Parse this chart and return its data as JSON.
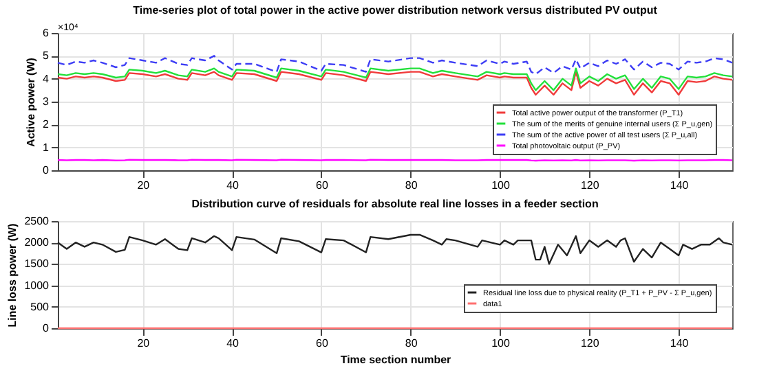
{
  "chart_data": [
    {
      "type": "line",
      "title": "Time-series plot of total power in the active power distribution network versus distributed PV output",
      "ylabel": "Active power (W)",
      "annotations": [
        "×10⁴"
      ],
      "xlim": [
        1,
        152
      ],
      "xticks": [
        20,
        40,
        60,
        80,
        100,
        120,
        140
      ],
      "ylim": [
        0,
        6
      ],
      "yticks": [
        0,
        1,
        2,
        3,
        4,
        5,
        6
      ],
      "grid": true,
      "legend": "bottom right",
      "marker": "none",
      "x": [
        1,
        3,
        5,
        7,
        9,
        11,
        14,
        16,
        17,
        20,
        23,
        25,
        28,
        30,
        31,
        34,
        36,
        37,
        40,
        41,
        45,
        50,
        51,
        55,
        60,
        61,
        65,
        70,
        71,
        75,
        80,
        82,
        85,
        87,
        90,
        95,
        97,
        100,
        101,
        103,
        106,
        107,
        108,
        110,
        112,
        114,
        116,
        117,
        118,
        120,
        122,
        124,
        126,
        128,
        130,
        132,
        134,
        136,
        138,
        140,
        142,
        144,
        146,
        148,
        150,
        152
      ],
      "series": [
        {
          "name": "Total active power output of the transformer (P_T1)",
          "color": "#f03a3a",
          "line_style": "solid",
          "values": [
            4.05,
            4.0,
            4.1,
            4.05,
            4.1,
            4.05,
            3.9,
            3.95,
            4.25,
            4.2,
            4.1,
            4.2,
            4.0,
            3.95,
            4.25,
            4.15,
            4.3,
            4.15,
            3.95,
            4.25,
            4.2,
            3.9,
            4.3,
            4.2,
            3.95,
            4.25,
            4.15,
            3.9,
            4.3,
            4.2,
            4.3,
            4.3,
            4.1,
            4.2,
            4.1,
            3.95,
            4.15,
            4.05,
            4.1,
            4.05,
            4.05,
            3.6,
            3.3,
            3.7,
            3.3,
            3.8,
            3.5,
            4.3,
            3.6,
            3.9,
            3.7,
            4.0,
            3.8,
            3.95,
            3.3,
            3.8,
            3.4,
            3.9,
            3.8,
            3.3,
            3.9,
            3.85,
            3.9,
            4.1,
            4.0,
            3.95
          ]
        },
        {
          "name": "The sum of the merits of genuine internal users (Σ P_u,gen)",
          "color": "#22e03a",
          "line_style": "solid",
          "values": [
            4.2,
            4.15,
            4.25,
            4.2,
            4.25,
            4.2,
            4.05,
            4.1,
            4.4,
            4.35,
            4.25,
            4.35,
            4.15,
            4.1,
            4.4,
            4.3,
            4.45,
            4.3,
            4.1,
            4.4,
            4.35,
            4.05,
            4.45,
            4.35,
            4.1,
            4.4,
            4.3,
            4.05,
            4.45,
            4.35,
            4.45,
            4.45,
            4.25,
            4.35,
            4.25,
            4.1,
            4.3,
            4.2,
            4.25,
            4.2,
            4.2,
            3.8,
            3.5,
            3.9,
            3.5,
            4.0,
            3.7,
            4.45,
            3.8,
            4.1,
            3.9,
            4.2,
            4.0,
            4.15,
            3.55,
            4.0,
            3.6,
            4.1,
            4.0,
            3.55,
            4.1,
            4.05,
            4.1,
            4.25,
            4.15,
            4.1
          ]
        },
        {
          "name": "The sum of the active power of all test users (Σ P_u,all)",
          "color": "#3d3df5",
          "line_style": "dashed",
          "values": [
            4.7,
            4.6,
            4.75,
            4.7,
            4.8,
            4.7,
            4.5,
            4.6,
            4.9,
            4.8,
            4.7,
            4.9,
            4.65,
            4.6,
            4.9,
            4.8,
            5.0,
            4.8,
            4.4,
            4.65,
            4.65,
            4.3,
            4.85,
            4.75,
            4.35,
            4.65,
            4.6,
            4.3,
            4.85,
            4.75,
            4.9,
            4.9,
            4.7,
            4.8,
            4.7,
            4.55,
            4.8,
            4.65,
            4.75,
            4.65,
            4.75,
            4.3,
            4.2,
            4.5,
            4.25,
            4.55,
            4.4,
            4.85,
            4.45,
            4.7,
            4.55,
            4.8,
            4.65,
            4.85,
            4.4,
            4.75,
            4.5,
            4.7,
            4.65,
            4.4,
            4.75,
            4.7,
            4.75,
            4.9,
            4.85,
            4.7
          ]
        },
        {
          "name": "Total photovoltaic output (P_PV)",
          "color": "#ff00ff",
          "line_style": "solid",
          "values": [
            0.45,
            0.44,
            0.45,
            0.45,
            0.44,
            0.45,
            0.43,
            0.44,
            0.46,
            0.45,
            0.45,
            0.45,
            0.44,
            0.44,
            0.46,
            0.45,
            0.45,
            0.45,
            0.44,
            0.46,
            0.45,
            0.44,
            0.46,
            0.45,
            0.44,
            0.45,
            0.45,
            0.44,
            0.46,
            0.45,
            0.45,
            0.45,
            0.45,
            0.45,
            0.44,
            0.44,
            0.45,
            0.45,
            0.45,
            0.45,
            0.45,
            0.43,
            0.42,
            0.44,
            0.43,
            0.44,
            0.43,
            0.45,
            0.43,
            0.44,
            0.43,
            0.44,
            0.44,
            0.44,
            0.42,
            0.44,
            0.43,
            0.44,
            0.44,
            0.43,
            0.44,
            0.44,
            0.44,
            0.45,
            0.45,
            0.44
          ]
        }
      ]
    },
    {
      "type": "line",
      "title": "Distribution curve of residuals for absolute real line losses in a feeder section",
      "xlabel": "Time section number",
      "ylabel": "Line loss power (W)",
      "xlim": [
        1,
        152
      ],
      "xticks": [
        20,
        40,
        60,
        80,
        100,
        120,
        140
      ],
      "ylim": [
        0,
        2500
      ],
      "yticks": [
        0,
        500,
        1000,
        1500,
        2000,
        2500
      ],
      "grid": true,
      "legend": "bottom right",
      "marker": "none",
      "x": [
        1,
        3,
        5,
        7,
        9,
        11,
        14,
        16,
        17,
        20,
        23,
        25,
        28,
        30,
        31,
        34,
        36,
        37,
        40,
        41,
        45,
        50,
        51,
        55,
        60,
        61,
        65,
        70,
        71,
        75,
        80,
        82,
        85,
        87,
        88,
        90,
        95,
        96,
        100,
        101,
        103,
        104,
        107,
        108,
        109,
        110,
        111,
        113,
        115,
        117,
        118,
        120,
        122,
        124,
        126,
        127,
        128,
        130,
        132,
        134,
        136,
        138,
        140,
        141,
        143,
        145,
        147,
        149,
        150,
        152
      ],
      "series": [
        {
          "name": "Residual line loss due to physical reality (P_T1 + P_PV - Σ P_u,gen)",
          "color": "#222222",
          "line_style": "solid",
          "values": [
            2000,
            1850,
            2000,
            1900,
            2000,
            1950,
            1780,
            1830,
            2130,
            2050,
            1950,
            2080,
            1850,
            1820,
            2100,
            2000,
            2150,
            2100,
            1820,
            2130,
            2070,
            1750,
            2100,
            2030,
            1770,
            2080,
            2050,
            1770,
            2130,
            2080,
            2180,
            2180,
            2050,
            1950,
            2080,
            2050,
            1900,
            2050,
            1950,
            2050,
            1950,
            2050,
            2050,
            1600,
            1600,
            1900,
            1500,
            1950,
            1700,
            2150,
            1750,
            2050,
            1900,
            2050,
            1900,
            2050,
            2100,
            1550,
            1850,
            1650,
            2000,
            1850,
            1700,
            1950,
            1850,
            1950,
            1950,
            2100,
            2000,
            1950
          ]
        },
        {
          "name": "data1",
          "color": "#ff7070",
          "line_style": "solid",
          "x": [
            1,
            152
          ],
          "values": [
            0,
            0
          ]
        }
      ]
    }
  ]
}
